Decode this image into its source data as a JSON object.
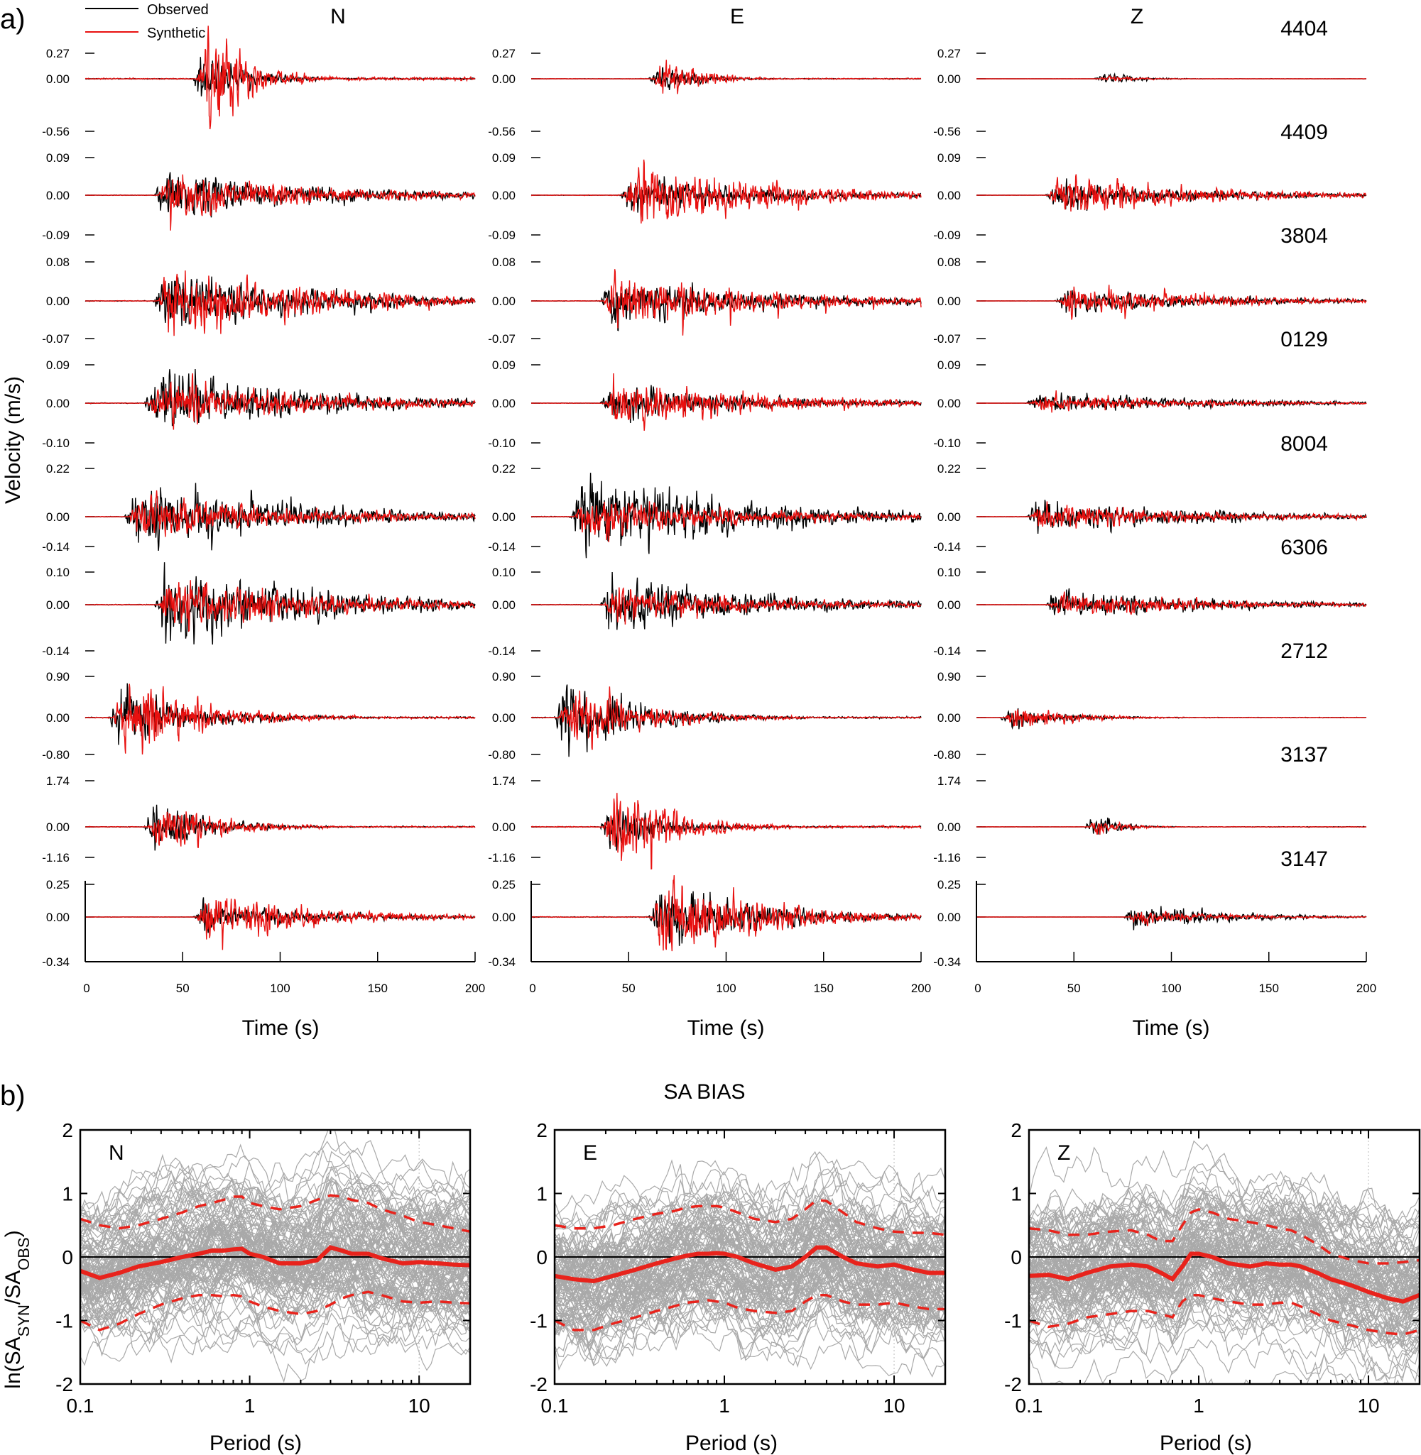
{
  "figure": {
    "panel_a_label": "a)",
    "panel_b_label": "b)"
  },
  "chart_data": [
    {
      "type": "line",
      "title": "",
      "panel": "a)",
      "description_hidden": false,
      "components": [
        "N",
        "E",
        "Z"
      ],
      "xlabel": "Time (s)",
      "ylabel": "Velocity (m/s)",
      "xlim": [
        0,
        200
      ],
      "xticks": [
        "0",
        "50",
        "100",
        "150",
        "200"
      ],
      "legend": {
        "placement": "top-left",
        "entries": [
          {
            "name": "Observed",
            "color": "#000000"
          },
          {
            "name": "Synthetic",
            "color": "#e8100f"
          }
        ]
      },
      "stations": [
        {
          "name": "4404",
          "ymax": "0.27",
          "zero": "0.00",
          "ymin": "-0.56",
          "ymax_val": 0.27,
          "ymin_val": -0.56,
          "onset_s": [
            55,
            60,
            60
          ],
          "duration_s": [
            45,
            40,
            35
          ],
          "peak_obs": [
            0.23,
            0.12,
            0.05
          ],
          "peak_syn": [
            0.56,
            0.2,
            0.03
          ]
        },
        {
          "name": "4409",
          "ymax": "0.09",
          "zero": "0.00",
          "ymin": "-0.09",
          "ymax_val": 0.09,
          "ymin_val": -0.09,
          "onset_s": [
            35,
            45,
            35
          ],
          "duration_s": [
            160,
            150,
            160
          ],
          "peak_obs": [
            0.055,
            0.05,
            0.04
          ],
          "peak_syn": [
            0.08,
            0.085,
            0.05
          ]
        },
        {
          "name": "3804",
          "ymax": "0.08",
          "zero": "0.00",
          "ymin": "-0.07",
          "ymax_val": 0.08,
          "ymin_val": -0.07,
          "onset_s": [
            35,
            35,
            40
          ],
          "duration_s": [
            160,
            160,
            160
          ],
          "peak_obs": [
            0.05,
            0.055,
            0.03
          ],
          "peak_syn": [
            0.065,
            0.065,
            0.035
          ]
        },
        {
          "name": "0129",
          "ymax": "0.09",
          "zero": "0.00",
          "ymin": "-0.10",
          "ymax_val": 0.09,
          "ymin_val": -0.1,
          "onset_s": [
            30,
            35,
            25
          ],
          "duration_s": [
            160,
            160,
            170
          ],
          "peak_obs": [
            0.08,
            0.05,
            0.025
          ],
          "peak_syn": [
            0.07,
            0.07,
            0.03
          ]
        },
        {
          "name": "8004",
          "ymax": "0.22",
          "zero": "0.00",
          "ymin": "-0.14",
          "ymax_val": 0.22,
          "ymin_val": -0.14,
          "onset_s": [
            20,
            20,
            25
          ],
          "duration_s": [
            175,
            175,
            175
          ],
          "peak_obs": [
            0.16,
            0.2,
            0.08
          ],
          "peak_syn": [
            0.12,
            0.12,
            0.07
          ]
        },
        {
          "name": "6306",
          "ymax": "0.10",
          "zero": "0.00",
          "ymin": "-0.14",
          "ymax_val": 0.1,
          "ymin_val": -0.14,
          "onset_s": [
            35,
            35,
            35
          ],
          "duration_s": [
            165,
            165,
            165
          ],
          "peak_obs": [
            0.13,
            0.1,
            0.05
          ],
          "peak_syn": [
            0.08,
            0.06,
            0.04
          ]
        },
        {
          "name": "2712",
          "ymax": "0.90",
          "zero": "0.00",
          "ymin": "-0.80",
          "ymax_val": 0.9,
          "ymin_val": -0.8,
          "onset_s": [
            12,
            12,
            12
          ],
          "duration_s": [
            80,
            80,
            60
          ],
          "peak_obs": [
            0.75,
            0.85,
            0.25
          ],
          "peak_syn": [
            0.8,
            0.7,
            0.2
          ]
        },
        {
          "name": "3137",
          "ymax": "1.74",
          "zero": "0.00",
          "ymin": "-1.16",
          "ymax_val": 1.74,
          "ymin_val": -1.16,
          "onset_s": [
            30,
            35,
            55
          ],
          "duration_s": [
            60,
            60,
            30
          ],
          "peak_obs": [
            0.9,
            0.9,
            0.35
          ],
          "peak_syn": [
            0.8,
            1.6,
            0.3
          ]
        },
        {
          "name": "3147",
          "ymax": "0.25",
          "zero": "0.00",
          "ymin": "-0.34",
          "ymax_val": 0.25,
          "ymin_val": -0.34,
          "onset_s": [
            55,
            60,
            75
          ],
          "duration_s": [
            120,
            110,
            100
          ],
          "peak_obs": [
            0.15,
            0.22,
            0.1
          ],
          "peak_syn": [
            0.25,
            0.32,
            0.07
          ]
        }
      ]
    },
    {
      "type": "line",
      "title": "SA BIAS",
      "panel": "b)",
      "xlabel": "Period (s)",
      "ylabel_parts": {
        "prefix": "ln(SA",
        "sub1": "SYN",
        "mid": "/SA",
        "sub2": "OBS",
        "suffix": ")"
      },
      "xscale": "log",
      "xlim": [
        0.1,
        20
      ],
      "ylim": [
        -2,
        2
      ],
      "xticks": [
        "0.1",
        "1",
        "10"
      ],
      "yticks": [
        "2",
        "1",
        "0",
        "-1",
        "-2"
      ],
      "components": [
        {
          "name": "N",
          "periods": [
            0.1,
            0.13,
            0.17,
            0.22,
            0.3,
            0.4,
            0.5,
            0.6,
            0.7,
            0.8,
            0.9,
            1.0,
            1.2,
            1.5,
            2.0,
            2.5,
            3.0,
            3.5,
            4.0,
            5.0,
            6.0,
            8.0,
            10.0,
            13.0,
            16.0,
            20.0
          ],
          "mean": [
            -0.22,
            -0.33,
            -0.25,
            -0.15,
            -0.08,
            0.0,
            0.05,
            0.1,
            0.1,
            0.12,
            0.13,
            0.05,
            0.0,
            -0.1,
            -0.1,
            -0.05,
            0.15,
            0.1,
            0.05,
            0.05,
            -0.02,
            -0.1,
            -0.08,
            -0.1,
            -0.12,
            -0.13
          ],
          "plus_sigma": [
            0.6,
            0.5,
            0.45,
            0.5,
            0.6,
            0.7,
            0.8,
            0.85,
            0.9,
            0.95,
            0.95,
            0.85,
            0.8,
            0.75,
            0.8,
            0.9,
            0.97,
            0.95,
            0.9,
            0.85,
            0.75,
            0.65,
            0.55,
            0.5,
            0.45,
            0.4
          ],
          "minus_sigma": [
            -1.0,
            -1.15,
            -1.05,
            -0.9,
            -0.75,
            -0.65,
            -0.6,
            -0.6,
            -0.62,
            -0.6,
            -0.62,
            -0.7,
            -0.78,
            -0.85,
            -0.9,
            -0.85,
            -0.75,
            -0.65,
            -0.6,
            -0.55,
            -0.6,
            -0.7,
            -0.72,
            -0.7,
            -0.72,
            -0.73
          ]
        },
        {
          "name": "E",
          "periods": [
            0.1,
            0.13,
            0.17,
            0.22,
            0.3,
            0.4,
            0.5,
            0.6,
            0.7,
            0.8,
            0.9,
            1.0,
            1.2,
            1.5,
            2.0,
            2.5,
            3.0,
            3.5,
            4.0,
            5.0,
            6.0,
            8.0,
            10.0,
            13.0,
            16.0,
            20.0
          ],
          "mean": [
            -0.3,
            -0.35,
            -0.38,
            -0.3,
            -0.2,
            -0.1,
            -0.03,
            0.02,
            0.05,
            0.05,
            0.06,
            0.05,
            0.0,
            -0.1,
            -0.2,
            -0.15,
            0.0,
            0.15,
            0.15,
            0.0,
            -0.1,
            -0.15,
            -0.12,
            -0.2,
            -0.25,
            -0.25
          ],
          "plus_sigma": [
            0.5,
            0.45,
            0.45,
            0.5,
            0.6,
            0.68,
            0.72,
            0.78,
            0.8,
            0.8,
            0.8,
            0.78,
            0.7,
            0.6,
            0.55,
            0.6,
            0.75,
            0.9,
            0.88,
            0.7,
            0.55,
            0.45,
            0.4,
            0.38,
            0.38,
            0.35
          ],
          "minus_sigma": [
            -1.0,
            -1.15,
            -1.15,
            -1.05,
            -0.95,
            -0.85,
            -0.78,
            -0.72,
            -0.7,
            -0.68,
            -0.7,
            -0.72,
            -0.8,
            -0.85,
            -0.88,
            -0.85,
            -0.7,
            -0.6,
            -0.6,
            -0.7,
            -0.75,
            -0.75,
            -0.72,
            -0.78,
            -0.82,
            -0.82
          ]
        },
        {
          "name": "Z",
          "periods": [
            0.1,
            0.13,
            0.17,
            0.22,
            0.3,
            0.4,
            0.5,
            0.6,
            0.7,
            0.8,
            0.9,
            1.0,
            1.2,
            1.5,
            2.0,
            2.5,
            3.0,
            3.5,
            4.0,
            5.0,
            6.0,
            8.0,
            10.0,
            13.0,
            16.0,
            20.0
          ],
          "mean": [
            -0.3,
            -0.28,
            -0.35,
            -0.25,
            -0.15,
            -0.12,
            -0.15,
            -0.25,
            -0.35,
            -0.15,
            0.05,
            0.05,
            0.0,
            -0.1,
            -0.15,
            -0.1,
            -0.12,
            -0.12,
            -0.15,
            -0.25,
            -0.35,
            -0.45,
            -0.55,
            -0.65,
            -0.7,
            -0.6
          ],
          "plus_sigma": [
            0.45,
            0.42,
            0.35,
            0.35,
            0.4,
            0.42,
            0.35,
            0.25,
            0.25,
            0.5,
            0.7,
            0.75,
            0.7,
            0.6,
            0.55,
            0.5,
            0.45,
            0.42,
            0.35,
            0.2,
            0.05,
            -0.05,
            -0.1,
            -0.1,
            -0.08,
            -0.05
          ],
          "minus_sigma": [
            -1.0,
            -1.1,
            -1.05,
            -0.95,
            -0.9,
            -0.85,
            -0.85,
            -0.9,
            -0.95,
            -0.7,
            -0.6,
            -0.6,
            -0.65,
            -0.7,
            -0.75,
            -0.75,
            -0.72,
            -0.72,
            -0.78,
            -0.9,
            -1.0,
            -1.08,
            -1.15,
            -1.2,
            -1.22,
            -1.15
          ]
        }
      ],
      "series_styles": [
        {
          "name": "individual stations",
          "color": "#a9a9a9"
        },
        {
          "name": "mean bias",
          "color": "#e8231c"
        },
        {
          "name": "±1 sigma",
          "color": "#e8231c",
          "dash": "dashed"
        }
      ]
    }
  ]
}
